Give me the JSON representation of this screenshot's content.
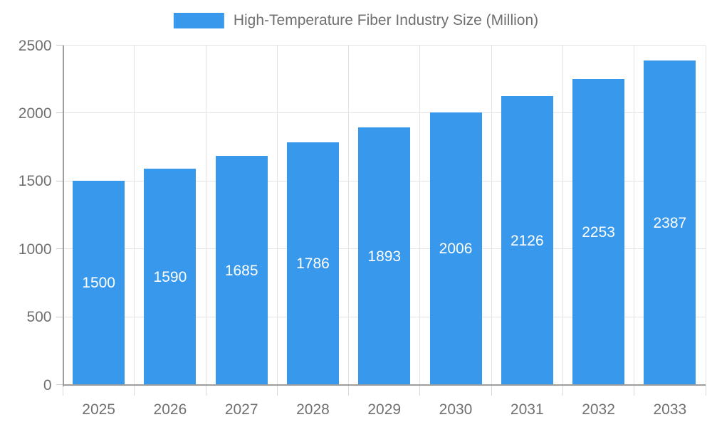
{
  "chart_data": {
    "type": "bar",
    "title": "High-Temperature Fiber Industry Size (Million)",
    "legend_position": "top",
    "categories": [
      "2025",
      "2026",
      "2027",
      "2028",
      "2029",
      "2030",
      "2031",
      "2032",
      "2033"
    ],
    "values": [
      1500,
      1590,
      1685,
      1786,
      1893,
      2006,
      2126,
      2253,
      2387
    ],
    "xlabel": "",
    "ylabel": "",
    "ylim": [
      0,
      2500
    ],
    "yticks": [
      0,
      500,
      1000,
      1500,
      2000,
      2500
    ],
    "grid": true,
    "bar_labels_visible": true,
    "colors": {
      "bar": "#3899ec",
      "bar_label": "#ffffff",
      "gridline": "#e3e3e3",
      "axis": "#9e9e9e",
      "tick_text": "#707070",
      "legend_text": "#707070"
    }
  }
}
